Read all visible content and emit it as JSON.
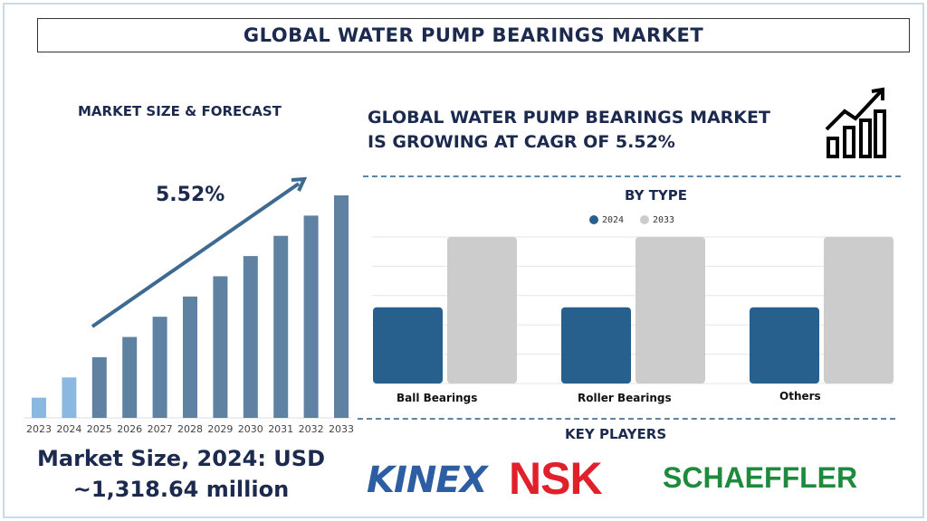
{
  "title": "GLOBAL WATER PUMP BEARINGS MARKET",
  "left": {
    "heading": "MARKET SIZE & FORECAST",
    "cagr_label": "5.52%",
    "footer_line1": "Market Size, 2024: USD",
    "footer_line2": "~1,318.64 million"
  },
  "right": {
    "headline_line1": "GLOBAL WATER PUMP BEARINGS MARKET",
    "headline_line2": "IS GROWING AT CAGR OF 5.52%",
    "icon": "growth-chart-icon",
    "key_players_heading": "KEY PLAYERS",
    "players": [
      "KINEX",
      "NSK",
      "SCHAEFFLER"
    ]
  },
  "colors": {
    "forecast_bar": "#5f82a3",
    "historic_bar": "#8ab8e0",
    "series_2024": "#27608d",
    "series_2033": "#cccccc",
    "navy": "#1b2a4e",
    "nsk": "#e0202a",
    "schaeffler": "#1d8a3c",
    "kinex": "#2d5ea3"
  },
  "chart_data": [
    {
      "type": "bar",
      "title": "",
      "categories": [
        "2023",
        "2024",
        "2025",
        "2026",
        "2027",
        "2028",
        "2029",
        "2030",
        "2031",
        "2032",
        "2033"
      ],
      "values": [
        1,
        2,
        3,
        4,
        5,
        6,
        7,
        8,
        9,
        10,
        11
      ],
      "annotation": "5.52%",
      "grid": false
    },
    {
      "type": "bar",
      "title": "BY TYPE",
      "categories": [
        "Ball Bearings",
        "Roller Bearings",
        "Others"
      ],
      "series": [
        {
          "name": "2024",
          "values": [
            2.6,
            2.6,
            2.6
          ]
        },
        {
          "name": "2033",
          "values": [
            5,
            5,
            5
          ]
        }
      ],
      "ylim": [
        0,
        5
      ],
      "grid": true,
      "legend": "top"
    }
  ]
}
